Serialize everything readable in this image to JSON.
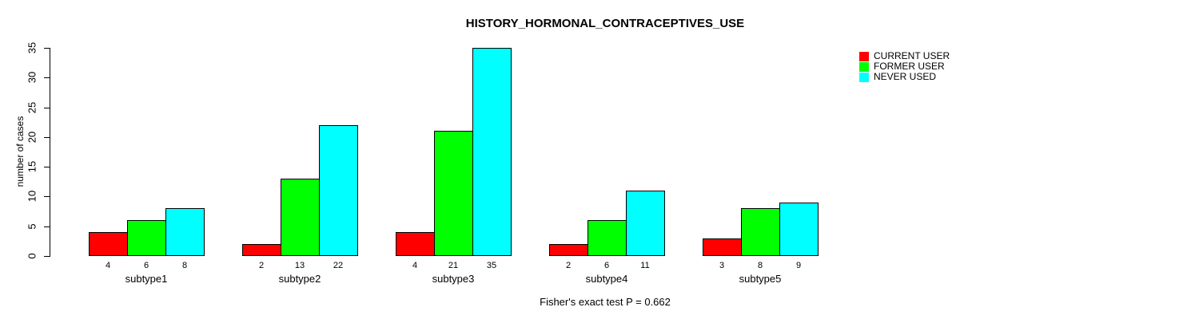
{
  "chart_data": {
    "type": "bar",
    "title": "HISTORY_HORMONAL_CONTRACEPTIVES_USE",
    "xlabel": "",
    "ylabel": "number of cases",
    "ylim": [
      0,
      35
    ],
    "yticks": [
      0,
      5,
      10,
      15,
      20,
      25,
      30,
      35
    ],
    "categories": [
      "subtype1",
      "subtype2",
      "subtype3",
      "subtype4",
      "subtype5"
    ],
    "series": [
      {
        "name": "CURRENT USER",
        "color": "#FF0000",
        "values": [
          4,
          2,
          4,
          2,
          3
        ]
      },
      {
        "name": "FORMER USER",
        "color": "#00FF00",
        "values": [
          6,
          13,
          21,
          6,
          8
        ]
      },
      {
        "name": "NEVER USED",
        "color": "#00FFFF",
        "values": [
          8,
          22,
          35,
          11,
          9
        ]
      }
    ],
    "bar_value_labels_shown": true,
    "legend_position": "top-right",
    "grid": false,
    "annotation": "Fisher's exact test P = 0.662"
  }
}
